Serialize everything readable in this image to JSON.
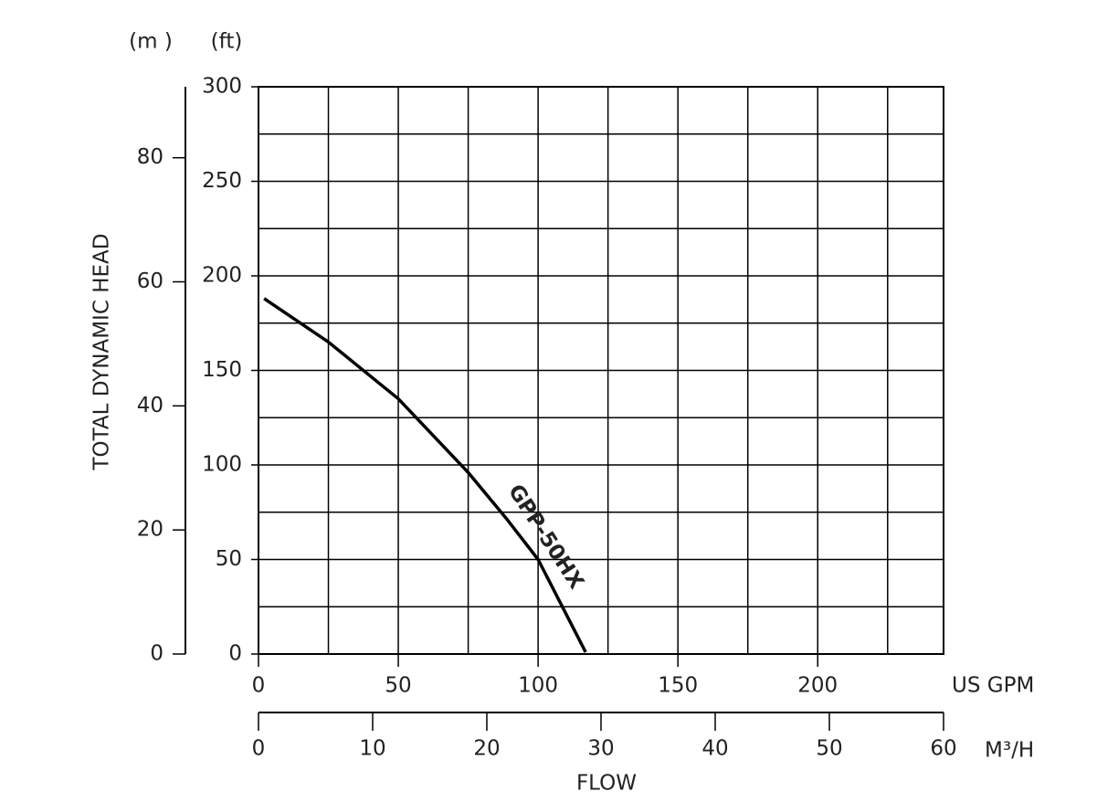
{
  "chart_data": {
    "type": "line",
    "y_label": "TOTAL DYNAMIC HEAD",
    "x_label": "FLOW",
    "y_unit": "(ft)",
    "y2_unit": "(m )",
    "x_unit": "US GPM",
    "x2_unit": "M³/H",
    "x": [
      2,
      25,
      50,
      75,
      89,
      100,
      117
    ],
    "series": [
      {
        "name": "GPP-50HX",
        "color": "#000000",
        "values": [
          188,
          165,
          135,
          96,
          71,
          50,
          1
        ]
      }
    ],
    "xlim": [
      0,
      245
    ],
    "xticks": [
      0,
      50,
      100,
      150,
      200
    ],
    "xminor": [
      25,
      75,
      125,
      175,
      225
    ],
    "ylim": [
      0,
      300
    ],
    "yticks": [
      0,
      50,
      100,
      150,
      200,
      250,
      300
    ],
    "yminor": [
      25,
      75,
      125,
      175,
      225,
      275
    ],
    "y2lim": [
      0,
      91.44
    ],
    "y2ticks": [
      0,
      20,
      40,
      60,
      80
    ],
    "x2lim": [
      0,
      60
    ],
    "x2ticks": [
      0,
      10,
      20,
      30,
      40,
      50,
      60
    ],
    "grid": true
  }
}
